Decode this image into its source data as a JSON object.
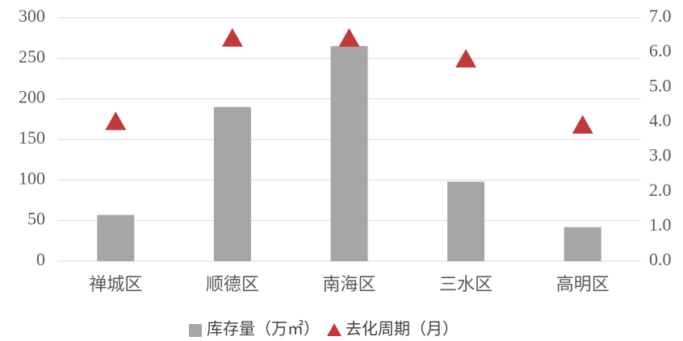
{
  "chart_data": {
    "type": "bar",
    "categories": [
      "禅城区",
      "顺德区",
      "南海区",
      "三水区",
      "高明区"
    ],
    "series": [
      {
        "name": "库存量（万㎡）",
        "color": "#a6a6a6",
        "values": [
          57,
          190,
          265,
          98,
          42
        ]
      },
      {
        "name": "去化周期（月）",
        "color": "#c0393b",
        "values": [
          4.0,
          6.4,
          6.4,
          5.8,
          3.9
        ],
        "axis": "y2",
        "marker": "triangle"
      }
    ],
    "ylim": [
      0,
      300
    ],
    "yticks": [
      0,
      50,
      100,
      150,
      200,
      250,
      300
    ],
    "y2lim": [
      0,
      7
    ],
    "y2ticks": [
      {
        "value": 0,
        "label": "0.0"
      },
      {
        "value": 1,
        "label": "1.0"
      },
      {
        "value": 2,
        "label": "2.0"
      },
      {
        "value": 3,
        "label": "3.0"
      },
      {
        "value": 4,
        "label": "4.0"
      },
      {
        "value": 5,
        "label": "5.0"
      },
      {
        "value": 6,
        "label": "6.0"
      },
      {
        "value": 7,
        "label": "7.0"
      }
    ],
    "grid": true,
    "legend": "bottom"
  }
}
